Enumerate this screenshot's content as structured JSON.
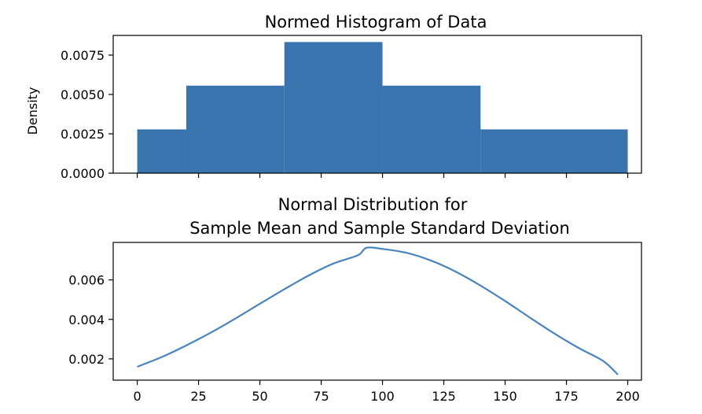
{
  "colors": {
    "bar_fill": "#3a74ae",
    "curve_stroke": "#4a84bb"
  },
  "chart_data": [
    {
      "type": "bar",
      "title": "Normed Histogram of Data",
      "xlabel": "",
      "ylabel": "Density",
      "bins": [
        {
          "start": 0,
          "end": 20,
          "value": 0.00278
        },
        {
          "start": 20,
          "end": 60,
          "value": 0.00556
        },
        {
          "start": 60,
          "end": 100,
          "value": 0.00833
        },
        {
          "start": 100,
          "end": 140,
          "value": 0.00556
        },
        {
          "start": 140,
          "end": 200,
          "value": 0.00278
        }
      ],
      "xlim": [
        -9.8,
        205.6
      ],
      "ylim": [
        0,
        0.00875
      ],
      "xticks": [
        0,
        25,
        50,
        75,
        100,
        125,
        150,
        175,
        200
      ],
      "xtick_labels_visible": false,
      "yticks": [
        0.0,
        0.0025,
        0.005,
        0.0075
      ],
      "ytick_labels": [
        "0.0000",
        "0.0025",
        "0.0050",
        "0.0075"
      ],
      "grid": false
    },
    {
      "type": "line",
      "title": "Normal Distribution for\nSample Mean and Sample Standard Deviation",
      "title_lines": [
        "Normal Distribution for",
        "Sample Mean and Sample Standard Deviation"
      ],
      "xlabel": "",
      "ylabel": "",
      "x": [
        0,
        10,
        20,
        30,
        40,
        50,
        60,
        70,
        80,
        90,
        93.5,
        100,
        110,
        120,
        130,
        140,
        150,
        160,
        170,
        180,
        190,
        196
      ],
      "y": [
        0.0016,
        0.00209,
        0.00268,
        0.00333,
        0.00404,
        0.00479,
        0.00553,
        0.00623,
        0.00683,
        0.00725,
        0.00763,
        0.00757,
        0.00737,
        0.00697,
        0.00641,
        0.00571,
        0.00493,
        0.0041,
        0.00329,
        0.00255,
        0.00189,
        0.0012
      ],
      "xlim": [
        -9.8,
        205.6
      ],
      "ylim": [
        0.00092,
        0.0079
      ],
      "xticks": [
        0,
        25,
        50,
        75,
        100,
        125,
        150,
        175,
        200
      ],
      "xtick_labels": [
        "0",
        "25",
        "50",
        "75",
        "100",
        "125",
        "150",
        "175",
        "200"
      ],
      "yticks": [
        0.002,
        0.004,
        0.006
      ],
      "ytick_labels": [
        "0.002",
        "0.004",
        "0.006"
      ],
      "grid": false
    }
  ]
}
